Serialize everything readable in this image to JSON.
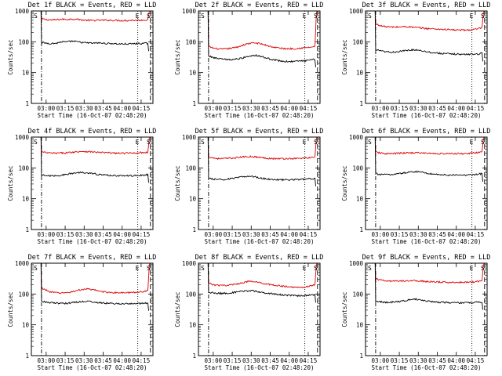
{
  "figure": {
    "row_x_tick_labels": [
      "03:00",
      "03:15",
      "03:30",
      "03:45",
      "04:00",
      "04:15"
    ],
    "xlabel": "Start Time (16-Oct-07 02:48:20)",
    "ylabel": "Counts/sec",
    "y_tick_labels": [
      "1",
      "10",
      "100",
      "1000"
    ],
    "markers": {
      "start": "S",
      "end": "E"
    }
  },
  "chart_data": [
    {
      "type": "line",
      "title": "Det 1f BLACK = Events, RED = LLD",
      "x_unit": "minutes after 02:48:20",
      "xlim": [
        0,
        96
      ],
      "ylim": [
        1,
        1000
      ],
      "yscale": "log",
      "x": [
        8,
        12,
        16,
        20,
        24,
        28,
        32,
        36,
        40,
        44,
        48,
        52,
        56,
        60,
        64,
        68,
        72,
        76,
        80,
        84,
        88,
        92
      ],
      "series": [
        {
          "name": "LLD",
          "color": "#dd0000",
          "values": [
            560,
            520,
            510,
            520,
            540,
            530,
            550,
            540,
            510,
            500,
            490,
            500,
            500,
            500,
            500,
            495,
            490,
            490,
            500,
            500,
            505,
            520
          ]
        },
        {
          "name": "Events",
          "color": "#000000",
          "values": [
            95,
            90,
            88,
            90,
            100,
            98,
            105,
            100,
            95,
            92,
            90,
            92,
            90,
            88,
            88,
            85,
            85,
            85,
            86,
            88,
            88,
            90
          ]
        }
      ],
      "markers": [
        {
          "type": "dashdot",
          "x": 8,
          "label": "S"
        },
        {
          "type": "dotted",
          "x": 84,
          "label": "E"
        },
        {
          "type": "dashed",
          "x": 94
        }
      ]
    },
    {
      "type": "line",
      "title": "Det 2f BLACK = Events, RED = LLD",
      "x_unit": "minutes after 02:48:20",
      "xlim": [
        0,
        96
      ],
      "ylim": [
        1,
        1000
      ],
      "yscale": "log",
      "x": [
        8,
        12,
        16,
        20,
        24,
        28,
        32,
        36,
        40,
        44,
        48,
        52,
        56,
        60,
        64,
        68,
        72,
        76,
        80,
        84,
        88,
        92
      ],
      "series": [
        {
          "name": "LLD",
          "color": "#dd0000",
          "values": [
            70,
            62,
            58,
            58,
            60,
            64,
            70,
            80,
            88,
            92,
            88,
            80,
            72,
            66,
            62,
            60,
            60,
            60,
            62,
            64,
            66,
            70
          ]
        },
        {
          "name": "Events",
          "color": "#000000",
          "values": [
            35,
            30,
            28,
            27,
            26,
            27,
            28,
            31,
            34,
            37,
            35,
            31,
            28,
            26,
            24,
            23,
            23,
            23,
            24,
            24,
            25,
            27
          ]
        }
      ],
      "markers": [
        {
          "type": "dashdot",
          "x": 8,
          "label": "S"
        },
        {
          "type": "dotted",
          "x": 84,
          "label": "E"
        },
        {
          "type": "dashed",
          "x": 94
        }
      ]
    },
    {
      "type": "line",
      "title": "Det 3f BLACK = Events, RED = LLD",
      "x_unit": "minutes after 02:48:20",
      "xlim": [
        0,
        96
      ],
      "ylim": [
        1,
        1000
      ],
      "yscale": "log",
      "x": [
        8,
        12,
        16,
        20,
        24,
        28,
        32,
        36,
        40,
        44,
        48,
        52,
        56,
        60,
        64,
        68,
        72,
        76,
        80,
        84,
        88,
        92
      ],
      "series": [
        {
          "name": "LLD",
          "color": "#dd0000",
          "values": [
            380,
            330,
            310,
            300,
            300,
            305,
            310,
            300,
            290,
            280,
            270,
            265,
            260,
            255,
            250,
            245,
            240,
            240,
            240,
            245,
            260,
            280
          ]
        },
        {
          "name": "Events",
          "color": "#000000",
          "values": [
            55,
            50,
            47,
            46,
            47,
            49,
            52,
            54,
            55,
            52,
            48,
            45,
            43,
            42,
            41,
            40,
            40,
            39,
            39,
            40,
            40,
            42
          ]
        }
      ],
      "markers": [
        {
          "type": "dashdot",
          "x": 8,
          "label": "S"
        },
        {
          "type": "dotted",
          "x": 84,
          "label": "E"
        },
        {
          "type": "dashed",
          "x": 94
        }
      ]
    },
    {
      "type": "line",
      "title": "Det 4f BLACK = Events, RED = LLD",
      "x_unit": "minutes after 02:48:20",
      "xlim": [
        0,
        96
      ],
      "ylim": [
        1,
        1000
      ],
      "yscale": "log",
      "x": [
        8,
        12,
        16,
        20,
        24,
        28,
        32,
        36,
        40,
        44,
        48,
        52,
        56,
        60,
        64,
        68,
        72,
        76,
        80,
        84,
        88,
        92
      ],
      "series": [
        {
          "name": "LLD",
          "color": "#dd0000",
          "values": [
            330,
            310,
            300,
            300,
            305,
            310,
            320,
            335,
            345,
            340,
            330,
            320,
            315,
            310,
            305,
            300,
            300,
            300,
            305,
            310,
            315,
            320
          ]
        },
        {
          "name": "Events",
          "color": "#000000",
          "values": [
            58,
            56,
            55,
            56,
            58,
            62,
            66,
            70,
            72,
            70,
            66,
            62,
            60,
            58,
            57,
            56,
            56,
            55,
            56,
            57,
            58,
            60
          ]
        }
      ],
      "markers": [
        {
          "type": "dashdot",
          "x": 8,
          "label": "S"
        },
        {
          "type": "dotted",
          "x": 84,
          "label": "E"
        },
        {
          "type": "dashed",
          "x": 94
        }
      ]
    },
    {
      "type": "line",
      "title": "Det 5f BLACK = Events, RED = LLD",
      "x_unit": "minutes after 02:48:20",
      "xlim": [
        0,
        96
      ],
      "ylim": [
        1,
        1000
      ],
      "yscale": "log",
      "x": [
        8,
        12,
        16,
        20,
        24,
        28,
        32,
        36,
        40,
        44,
        48,
        52,
        56,
        60,
        64,
        68,
        72,
        76,
        80,
        84,
        88,
        92
      ],
      "series": [
        {
          "name": "LLD",
          "color": "#dd0000",
          "values": [
            230,
            210,
            200,
            200,
            205,
            210,
            220,
            230,
            235,
            230,
            220,
            210,
            205,
            200,
            200,
            200,
            200,
            200,
            205,
            210,
            215,
            225
          ]
        },
        {
          "name": "Events",
          "color": "#000000",
          "values": [
            45,
            43,
            42,
            42,
            44,
            46,
            49,
            52,
            54,
            52,
            48,
            45,
            43,
            42,
            41,
            41,
            41,
            42,
            42,
            43,
            44,
            46
          ]
        }
      ],
      "markers": [
        {
          "type": "dashdot",
          "x": 8,
          "label": "S"
        },
        {
          "type": "dotted",
          "x": 84,
          "label": "E"
        },
        {
          "type": "dashed",
          "x": 94
        }
      ]
    },
    {
      "type": "line",
      "title": "Det 6f BLACK = Events, RED = LLD",
      "x_unit": "minutes after 02:48:20",
      "xlim": [
        0,
        96
      ],
      "ylim": [
        1,
        1000
      ],
      "yscale": "log",
      "x": [
        8,
        12,
        16,
        20,
        24,
        28,
        32,
        36,
        40,
        44,
        48,
        52,
        56,
        60,
        64,
        68,
        72,
        76,
        80,
        84,
        88,
        92
      ],
      "series": [
        {
          "name": "LLD",
          "color": "#dd0000",
          "values": [
            330,
            300,
            290,
            290,
            295,
            300,
            305,
            310,
            310,
            305,
            300,
            295,
            290,
            290,
            290,
            290,
            290,
            290,
            295,
            300,
            310,
            325
          ]
        },
        {
          "name": "Events",
          "color": "#000000",
          "values": [
            65,
            62,
            60,
            61,
            63,
            66,
            70,
            74,
            76,
            73,
            68,
            64,
            62,
            60,
            59,
            58,
            58,
            58,
            59,
            60,
            62,
            65
          ]
        }
      ],
      "markers": [
        {
          "type": "dashdot",
          "x": 8,
          "label": "S"
        },
        {
          "type": "dotted",
          "x": 84,
          "label": "E"
        },
        {
          "type": "dashed",
          "x": 94
        }
      ]
    },
    {
      "type": "line",
      "title": "Det 7f BLACK = Events, RED = LLD",
      "x_unit": "minutes after 02:48:20",
      "xlim": [
        0,
        96
      ],
      "ylim": [
        1,
        1000
      ],
      "yscale": "log",
      "x": [
        8,
        12,
        16,
        20,
        24,
        28,
        32,
        36,
        40,
        44,
        48,
        52,
        56,
        60,
        64,
        68,
        72,
        76,
        80,
        84,
        88,
        92
      ],
      "series": [
        {
          "name": "LLD",
          "color": "#dd0000",
          "values": [
            160,
            130,
            115,
            110,
            108,
            110,
            118,
            130,
            140,
            145,
            138,
            128,
            120,
            115,
            112,
            110,
            110,
            110,
            112,
            115,
            120,
            130
          ]
        },
        {
          "name": "Events",
          "color": "#000000",
          "values": [
            60,
            55,
            52,
            50,
            50,
            50,
            52,
            55,
            57,
            58,
            56,
            53,
            51,
            50,
            49,
            49,
            48,
            48,
            48,
            49,
            50,
            52
          ]
        }
      ],
      "markers": [
        {
          "type": "dashdot",
          "x": 8,
          "label": "S"
        },
        {
          "type": "dotted",
          "x": 84,
          "label": "E"
        },
        {
          "type": "dashed",
          "x": 94
        }
      ]
    },
    {
      "type": "line",
      "title": "Det 8f BLACK = Events, RED = LLD",
      "x_unit": "minutes after 02:48:20",
      "xlim": [
        0,
        96
      ],
      "ylim": [
        1,
        1000
      ],
      "yscale": "log",
      "x": [
        8,
        12,
        16,
        20,
        24,
        28,
        32,
        36,
        40,
        44,
        48,
        52,
        56,
        60,
        64,
        68,
        72,
        76,
        80,
        84,
        88,
        92
      ],
      "series": [
        {
          "name": "LLD",
          "color": "#dd0000",
          "values": [
            230,
            200,
            190,
            190,
            195,
            205,
            220,
            240,
            255,
            250,
            235,
            220,
            205,
            195,
            185,
            175,
            170,
            165,
            165,
            170,
            180,
            200
          ]
        },
        {
          "name": "Events",
          "color": "#000000",
          "values": [
            115,
            108,
            105,
            105,
            108,
            112,
            118,
            124,
            128,
            125,
            118,
            110,
            104,
            100,
            96,
            92,
            90,
            88,
            88,
            90,
            92,
            96
          ]
        }
      ],
      "markers": [
        {
          "type": "dashdot",
          "x": 8,
          "label": "S"
        },
        {
          "type": "dotted",
          "x": 84,
          "label": "E"
        },
        {
          "type": "dashed",
          "x": 94
        }
      ]
    },
    {
      "type": "line",
      "title": "Det 9f BLACK = Events, RED = LLD",
      "x_unit": "minutes after 02:48:20",
      "xlim": [
        0,
        96
      ],
      "ylim": [
        1,
        1000
      ],
      "yscale": "log",
      "x": [
        8,
        12,
        16,
        20,
        24,
        28,
        32,
        36,
        40,
        44,
        48,
        52,
        56,
        60,
        64,
        68,
        72,
        76,
        80,
        84,
        88,
        92
      ],
      "series": [
        {
          "name": "LLD",
          "color": "#dd0000",
          "values": [
            320,
            280,
            265,
            260,
            262,
            265,
            270,
            272,
            270,
            262,
            255,
            250,
            245,
            242,
            240,
            240,
            240,
            240,
            242,
            245,
            255,
            270
          ]
        },
        {
          "name": "Events",
          "color": "#000000",
          "values": [
            60,
            56,
            54,
            54,
            56,
            58,
            62,
            66,
            68,
            64,
            60,
            57,
            55,
            54,
            53,
            52,
            52,
            52,
            52,
            53,
            54,
            56
          ]
        }
      ],
      "markers": [
        {
          "type": "dashdot",
          "x": 8,
          "label": "S"
        },
        {
          "type": "dotted",
          "x": 84,
          "label": "E"
        },
        {
          "type": "dashed",
          "x": 94
        }
      ]
    }
  ]
}
